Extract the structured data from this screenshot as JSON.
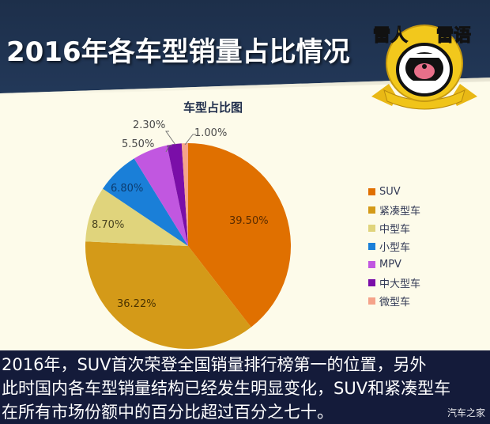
{
  "header": {
    "title": "2016年各车型销量占比情况",
    "badge_text": [
      "雷人",
      "雷语"
    ],
    "badge_icon": "screaming-face-badge-icon"
  },
  "colors": {
    "header_bg": "#1f3350",
    "panel_bg": "#fdfbea",
    "caption_bg": "#141b3a",
    "badge_gold": "#f0c419"
  },
  "chart_data": {
    "type": "pie",
    "title": "车型占比图",
    "categories": [
      "SUV",
      "紧凑型车",
      "中型车",
      "小型车",
      "MPV",
      "中大型车",
      "微型车"
    ],
    "values": [
      39.5,
      36.22,
      8.7,
      6.8,
      5.5,
      2.3,
      1.0
    ],
    "labels": [
      "39.50%",
      "36.22%",
      "8.70%",
      "6.80%",
      "5.50%",
      "2.30%",
      "1.00%"
    ],
    "colors": [
      "#e07000",
      "#d49a18",
      "#e0d47c",
      "#1a7fd8",
      "#c157e0",
      "#7a0ea8",
      "#f5a38a"
    ],
    "start_angle": "12 o'clock",
    "direction": "clockwise",
    "legend_position": "right"
  },
  "caption": {
    "lines": [
      "2016年，SUV首次荣登全国销量排行榜第一的位置，另外",
      "此时国内各车型销量结构已经发生明显变化，SUV和紧凑型车",
      "在所有市场份额中的百分比超过百分之七十。"
    ],
    "watermark": "汽车之家"
  }
}
